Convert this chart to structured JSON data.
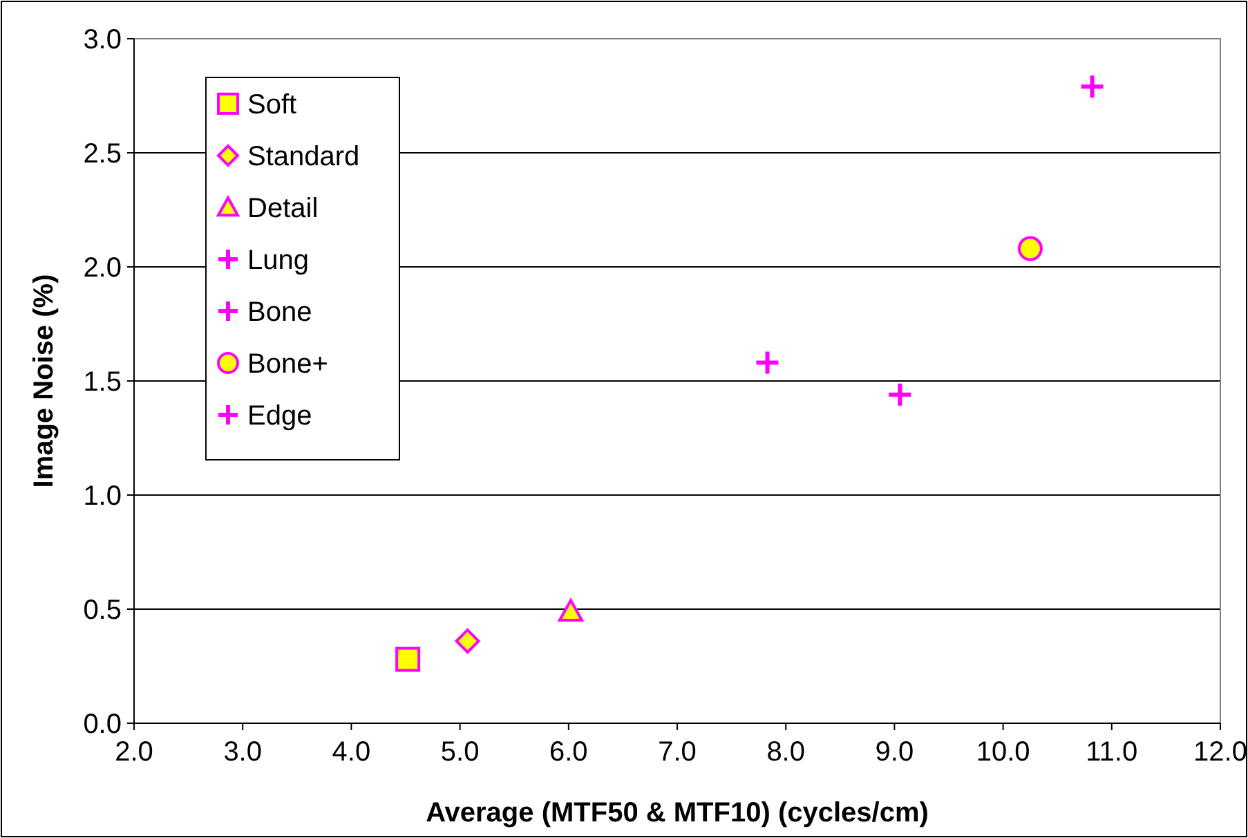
{
  "chart_data": {
    "type": "scatter",
    "xlabel": "Average (MTF50 & MTF10) (cycles/cm)",
    "ylabel": "Image Noise (%)",
    "xlim": [
      2,
      12
    ],
    "xticks": [
      {
        "value": 2,
        "label": "2.0"
      },
      {
        "value": 3,
        "label": "3.0"
      },
      {
        "value": 4,
        "label": "4.0"
      },
      {
        "value": 5,
        "label": "5.0"
      },
      {
        "value": 6,
        "label": "6.0"
      },
      {
        "value": 7,
        "label": "7.0"
      },
      {
        "value": 8,
        "label": "8.0"
      },
      {
        "value": 9,
        "label": "9.0"
      },
      {
        "value": 10,
        "label": "10.0"
      },
      {
        "value": 11,
        "label": "11.0"
      },
      {
        "value": 12,
        "label": "12.0"
      }
    ],
    "ylim": [
      0,
      3
    ],
    "yticks": [
      {
        "value": 0,
        "label": "0.0"
      },
      {
        "value": 0.5,
        "label": "0.5"
      },
      {
        "value": 1,
        "label": "1.0"
      },
      {
        "value": 1.5,
        "label": "1.5"
      },
      {
        "value": 2,
        "label": "2.0"
      },
      {
        "value": 2.5,
        "label": "2.5"
      },
      {
        "value": 3,
        "label": "3.0"
      }
    ],
    "grid": "y",
    "legend": "top left",
    "series": [
      {
        "name": "Soft",
        "color": "#ff00ff",
        "marker": "square",
        "x": [
          4.52
        ],
        "values": [
          0.28
        ]
      },
      {
        "name": "Standard",
        "color": "#ff00ff",
        "marker": "diamond",
        "x": [
          5.07
        ],
        "values": [
          0.36
        ]
      },
      {
        "name": "Detail",
        "color": "#ff00ff",
        "marker": "triangle",
        "x": [
          6.02
        ],
        "values": [
          0.49
        ]
      },
      {
        "name": "Lung",
        "color": "#ff00ff",
        "marker": "cross",
        "x": [
          7.83
        ],
        "values": [
          1.58
        ]
      },
      {
        "name": "Bone",
        "color": "#ff00ff",
        "marker": "cross",
        "x": [
          9.05
        ],
        "values": [
          1.44
        ]
      },
      {
        "name": "Bone+",
        "color": "#ff00ff",
        "marker": "circle",
        "x": [
          10.25
        ],
        "values": [
          2.08
        ]
      },
      {
        "name": "Edge",
        "color": "#ff00ff",
        "marker": "cross",
        "x": [
          10.82
        ],
        "values": [
          2.79
        ]
      }
    ]
  }
}
